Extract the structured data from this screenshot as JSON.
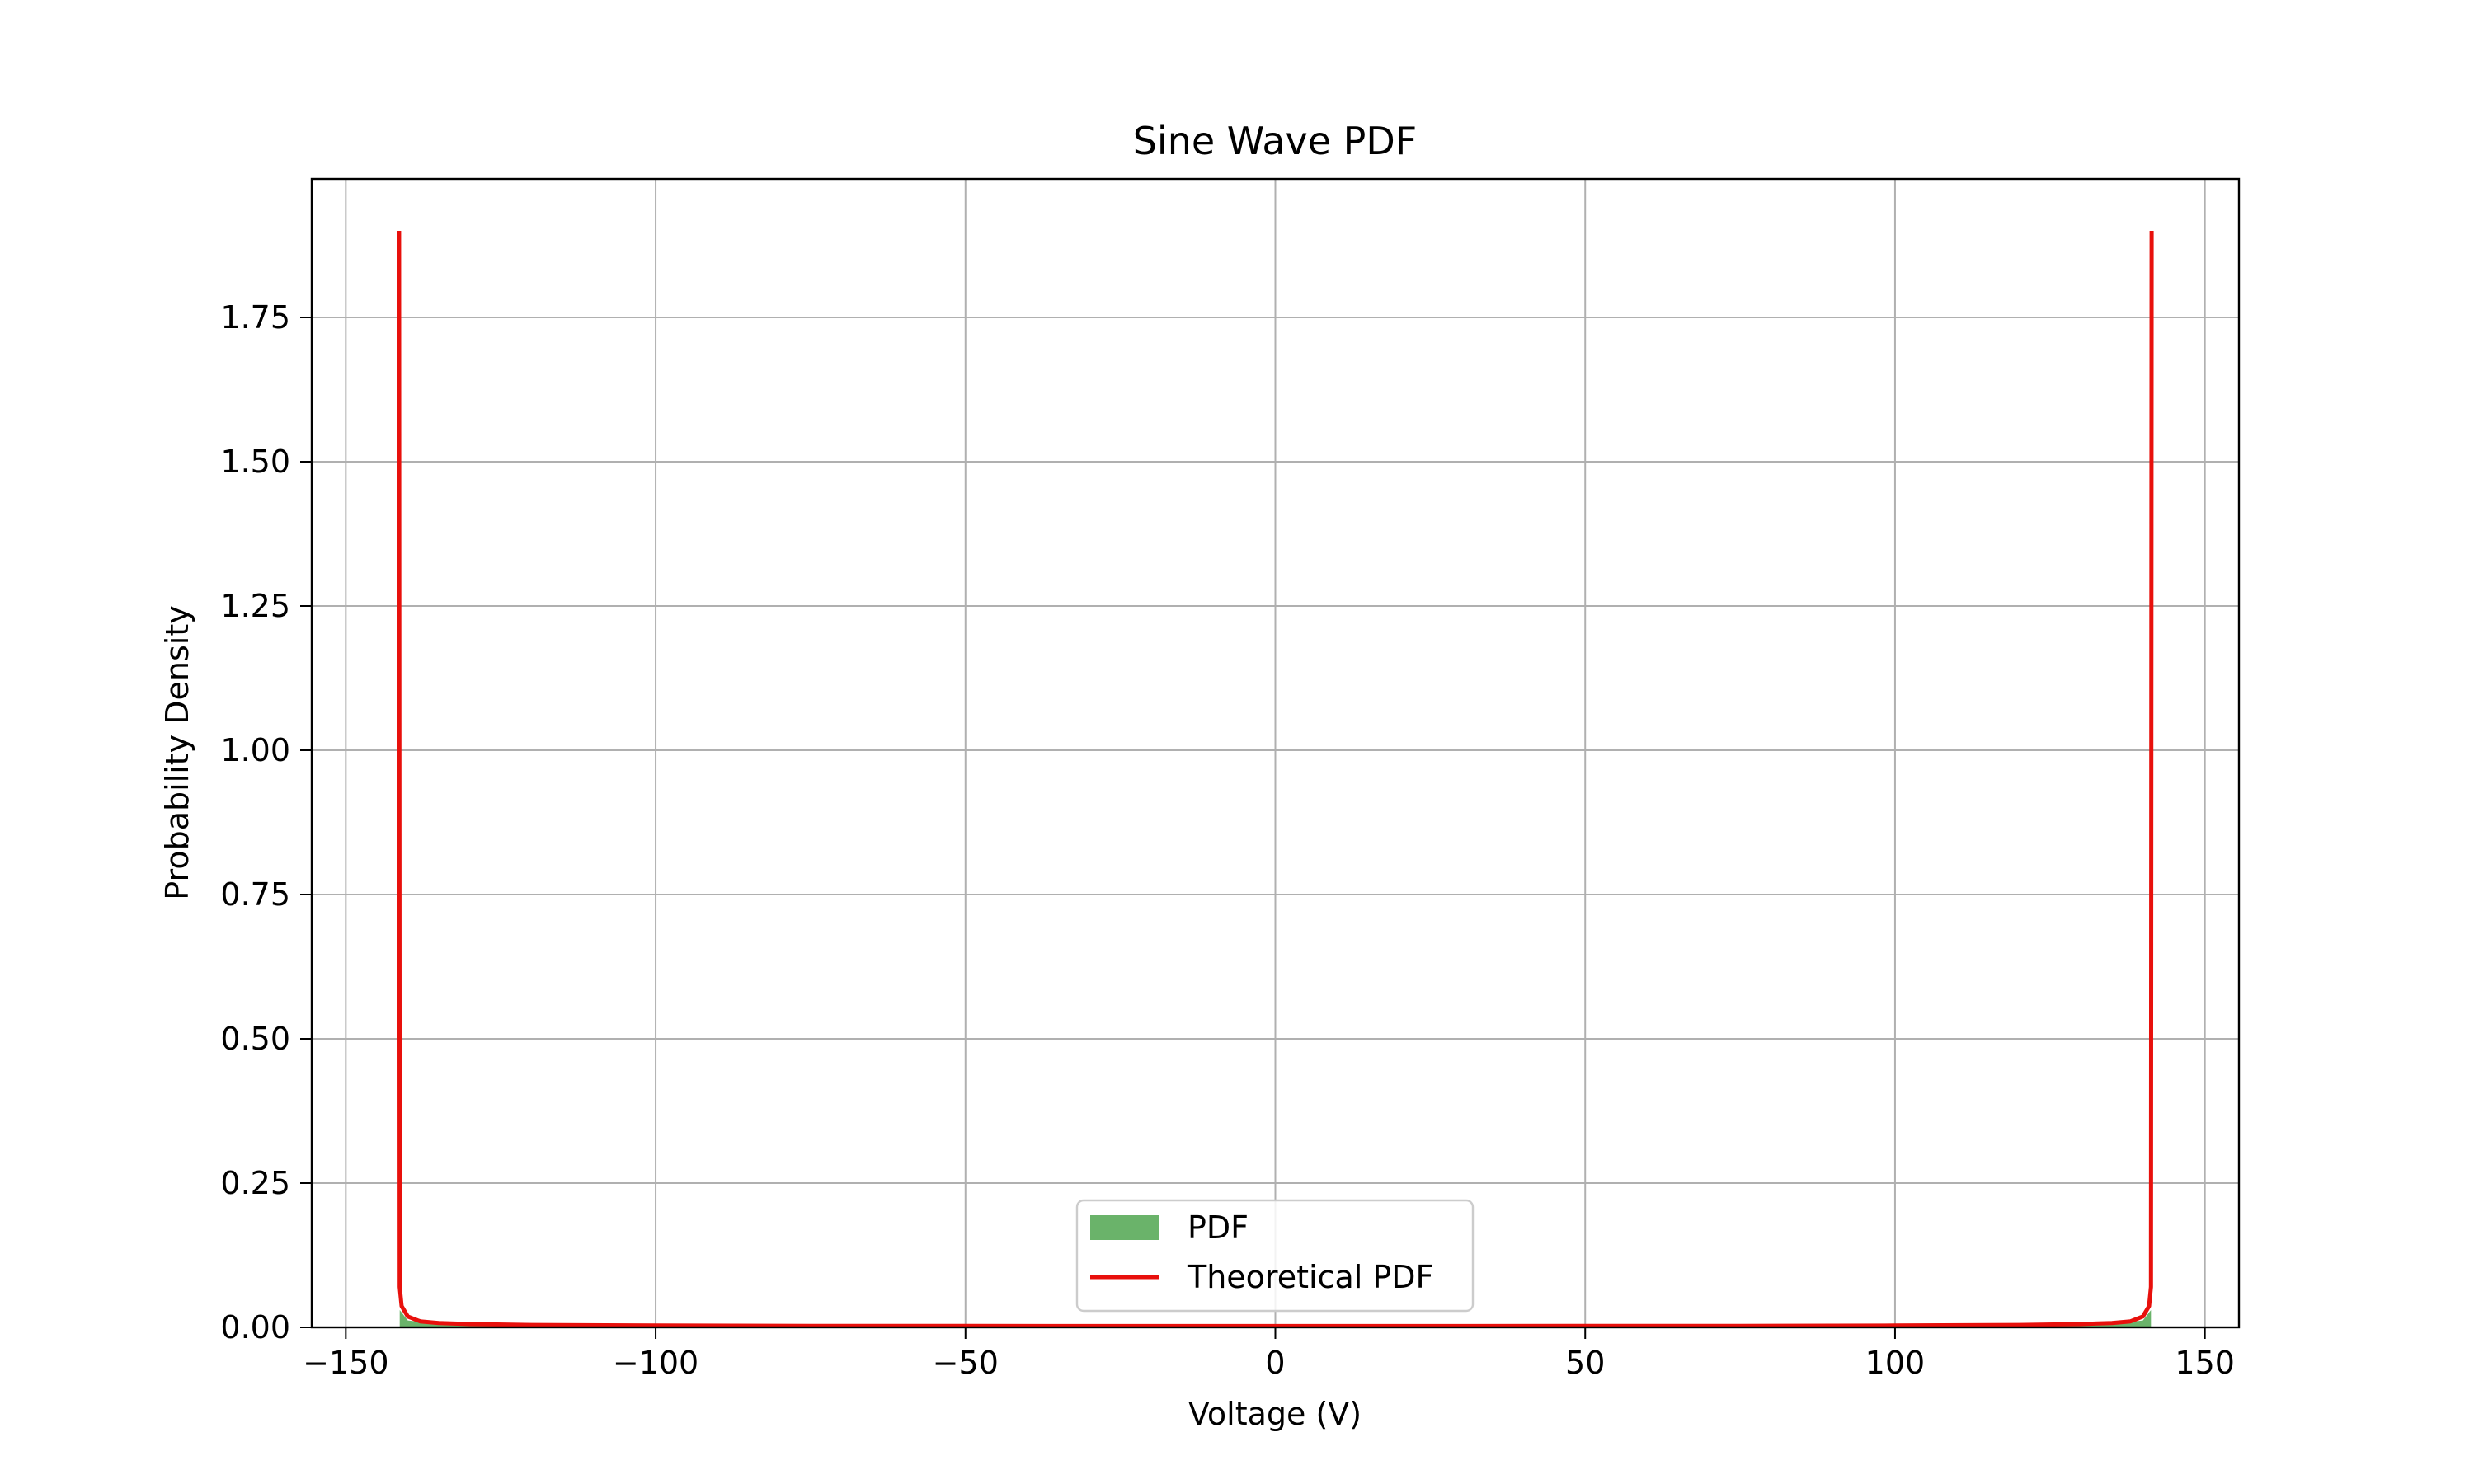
{
  "chart_data": {
    "type": "area",
    "title": "Sine Wave PDF",
    "xlabel": "Voltage (V)",
    "ylabel": "Probability Density",
    "xlim": [
      -155.5,
      155.5
    ],
    "ylim": [
      0,
      1.99
    ],
    "x_ticks": [
      -150,
      -100,
      -50,
      0,
      50,
      100,
      150
    ],
    "x_tick_labels": [
      "−150",
      "−100",
      "−50",
      "0",
      "50",
      "100",
      "150"
    ],
    "y_ticks": [
      0,
      0.25,
      0.5,
      0.75,
      1.0,
      1.25,
      1.5,
      1.75
    ],
    "y_tick_labels": [
      "0.00",
      "0.25",
      "0.50",
      "0.75",
      "1.00",
      "1.25",
      "1.50",
      "1.75"
    ],
    "grid": true,
    "legend_placement": "lower center",
    "amplitude": 141.42,
    "peak_density": 1.9,
    "series": [
      {
        "name": "PDF",
        "kind": "histogram",
        "color": "#5aab5a",
        "opacity": 0.9,
        "x": [
          -141.3,
          -140,
          -135,
          -130,
          -120,
          -100,
          -75,
          -50,
          -25,
          0,
          25,
          50,
          75,
          100,
          120,
          130,
          135,
          140,
          141.3
        ],
        "values": [
          0.03,
          0.012,
          0.0058,
          0.0042,
          0.003,
          0.0025,
          0.0023,
          0.0023,
          0.0023,
          0.0023,
          0.0023,
          0.0023,
          0.0023,
          0.0025,
          0.003,
          0.0042,
          0.0058,
          0.012,
          0.03
        ]
      },
      {
        "name": "Theoretical PDF",
        "kind": "line",
        "color": "#e8100c",
        "x": [
          -141.41,
          -141.3,
          -141.0,
          -140.0,
          -138,
          -135,
          -130,
          -120,
          -100,
          -75,
          -50,
          -25,
          0,
          25,
          50,
          75,
          100,
          120,
          130,
          135,
          138,
          140,
          141.0,
          141.3,
          141.41
        ],
        "values": [
          1.9,
          0.07,
          0.0368,
          0.0188,
          0.0105,
          0.0076,
          0.0057,
          0.0042,
          0.0032,
          0.0026,
          0.0024,
          0.0023,
          0.00225,
          0.0023,
          0.0024,
          0.0026,
          0.0032,
          0.0042,
          0.0057,
          0.0076,
          0.0105,
          0.0188,
          0.0368,
          0.07,
          1.9
        ]
      }
    ],
    "legend": [
      "PDF",
      "Theoretical PDF"
    ]
  }
}
